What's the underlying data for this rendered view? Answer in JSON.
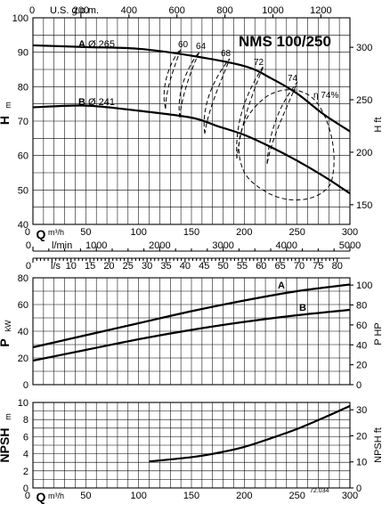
{
  "chart_data": [
    {
      "type": "line",
      "title": "NMS 100/250",
      "xlabel": "Q",
      "xunit": "m³/h",
      "ylabel": "H",
      "yunit": "m",
      "y2label": "H",
      "y2unit": "ft",
      "xlim": [
        0,
        300
      ],
      "ylim": [
        40,
        100
      ],
      "xticks": [
        0,
        50,
        100,
        150,
        200,
        250,
        300
      ],
      "yticks": [
        40,
        50,
        60,
        70,
        80,
        90,
        100
      ],
      "y2ticks": [
        150,
        200,
        250,
        300
      ],
      "top_axis": {
        "label": "U.S. g.p.m.",
        "ticks": [
          0,
          200,
          400,
          600,
          800,
          1000,
          1200
        ]
      },
      "lmin_axis": {
        "label": "l/min",
        "ticks": [
          0,
          1000,
          2000,
          3000,
          4000,
          5000
        ]
      },
      "ls_axis": {
        "label": "l/s",
        "ticks": [
          0,
          10,
          15,
          20,
          25,
          30,
          35,
          40,
          45,
          50,
          55,
          60,
          65,
          70,
          75,
          80
        ]
      },
      "series": [
        {
          "name": "A",
          "dia_label": "Ø 265",
          "x": [
            0,
            50,
            100,
            150,
            200,
            225,
            250,
            275,
            300
          ],
          "y": [
            92,
            91.5,
            91,
            89,
            86,
            82.5,
            78,
            72,
            67
          ]
        },
        {
          "name": "B",
          "dia_label": "Ø 241",
          "x": [
            0,
            50,
            100,
            150,
            175,
            200,
            225,
            250,
            275,
            300
          ],
          "y": [
            74,
            74.5,
            73,
            71,
            68.5,
            66,
            62.5,
            58.5,
            54,
            49
          ]
        }
      ],
      "efficiency_labels": [
        "60",
        "64",
        "68",
        "72",
        "74",
        "74%"
      ],
      "efficiency_symbol": "η",
      "grid": true
    },
    {
      "type": "line",
      "xlabel": "Q",
      "ylabel": "P",
      "yunit": "kW",
      "y2label": "P",
      "y2unit": "HP",
      "xlim": [
        0,
        300
      ],
      "ylim": [
        0,
        80
      ],
      "yticks": [
        0,
        20,
        40,
        60,
        80
      ],
      "y2ticks": [
        0,
        20,
        40,
        60,
        80,
        100
      ],
      "series": [
        {
          "name": "A",
          "x": [
            0,
            50,
            100,
            150,
            200,
            250,
            300
          ],
          "y": [
            28,
            37,
            46,
            55,
            63,
            70,
            75
          ]
        },
        {
          "name": "B",
          "x": [
            0,
            50,
            100,
            150,
            200,
            250,
            300
          ],
          "y": [
            18,
            26,
            34,
            41,
            47,
            52,
            56
          ]
        }
      ],
      "grid": true
    },
    {
      "type": "line",
      "xlabel": "Q",
      "xunit": "m³/h",
      "ylabel": "NPSH",
      "yunit": "m",
      "y2label": "NPSH",
      "y2unit": "ft",
      "xlim": [
        0,
        300
      ],
      "ylim": [
        0,
        10
      ],
      "yticks": [
        0,
        2,
        4,
        6,
        8,
        10
      ],
      "y2ticks": [
        0,
        10,
        20,
        30
      ],
      "xticks": [
        0,
        50,
        100,
        150,
        200,
        250,
        300
      ],
      "series": [
        {
          "name": "NPSH",
          "x": [
            110,
            150,
            175,
            200,
            225,
            250,
            275,
            300
          ],
          "y": [
            3.1,
            3.6,
            4.1,
            4.8,
            5.8,
            6.9,
            8.2,
            9.6
          ]
        }
      ],
      "code": "72.034",
      "grid": true
    }
  ]
}
